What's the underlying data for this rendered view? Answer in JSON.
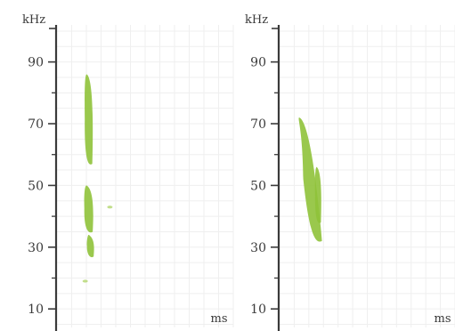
{
  "chart_data": [
    {
      "type": "heatmap",
      "ylabel": "kHz",
      "xlabel": "ms",
      "ylim": [
        4,
        102
      ],
      "y_ticks_labeled": [
        10,
        30,
        50,
        70,
        90
      ],
      "y_ticks_minor": [
        20,
        40,
        60,
        80
      ],
      "grid": true,
      "blobs": [
        {
          "x": 0.18,
          "y_low": 57,
          "y_high": 86,
          "width": 0.045
        },
        {
          "x": 0.18,
          "y_low": 35,
          "y_high": 50,
          "width": 0.05
        },
        {
          "x": 0.19,
          "y_low": 27,
          "y_high": 34,
          "width": 0.04
        }
      ],
      "specks": [
        {
          "x": 0.3,
          "y": 43
        },
        {
          "x": 0.16,
          "y": 19
        }
      ]
    },
    {
      "type": "heatmap",
      "ylabel": "kHz",
      "xlabel": "ms",
      "ylim": [
        4,
        102
      ],
      "y_ticks_labeled": [
        10,
        30,
        50,
        70,
        90
      ],
      "y_ticks_minor": [
        20,
        40,
        60,
        80
      ],
      "grid": true,
      "blobs": [
        {
          "x": 0.17,
          "y_low": 32,
          "y_high": 72,
          "width": 0.07,
          "tilt": 0.04
        },
        {
          "x": 0.22,
          "y_low": 38,
          "y_high": 56,
          "width": 0.035
        }
      ],
      "specks": []
    }
  ],
  "colors": {
    "axis": "#3a3a3a",
    "grid": "#efefef",
    "signal": "#8fc23a",
    "signal_light": "#b3d66e"
  }
}
